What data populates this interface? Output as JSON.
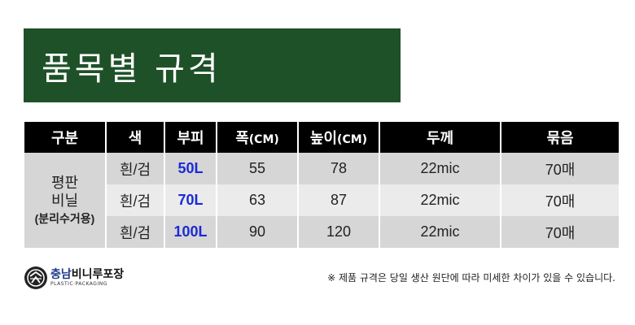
{
  "title": "품목별 규격",
  "table": {
    "headers": [
      {
        "label": "구분",
        "unit": ""
      },
      {
        "label": "색",
        "unit": ""
      },
      {
        "label": "부피",
        "unit": ""
      },
      {
        "label": "폭",
        "unit": "(CM)"
      },
      {
        "label": "높이",
        "unit": "(CM)"
      },
      {
        "label": "두께",
        "unit": ""
      },
      {
        "label": "묶음",
        "unit": ""
      }
    ],
    "category": {
      "line1": "평판",
      "line2": "비닐",
      "line3": "(분리수거용)"
    },
    "rows": [
      {
        "color": "흰/검",
        "volume": "50L",
        "width": "55",
        "height": "78",
        "thickness": "22mic",
        "bundle": "70매"
      },
      {
        "color": "흰/검",
        "volume": "70L",
        "width": "63",
        "height": "87",
        "thickness": "22mic",
        "bundle": "70매"
      },
      {
        "color": "흰/검",
        "volume": "100L",
        "width": "90",
        "height": "120",
        "thickness": "22mic",
        "bundle": "70매"
      }
    ]
  },
  "logo": {
    "name_part1": "충남",
    "name_part2": "비니루포장",
    "subtitle": "PLASTIC·PACKAGING"
  },
  "note": "※ 제품 규격은 당일 생산 원단에 따라 미세한 차이가 있을 수 있습니다.",
  "colors": {
    "banner": "#1e5128",
    "header_bg": "#000000",
    "volume_text": "#1a2bd4",
    "row_dark": "#d6d6d6",
    "row_light": "#ebebeb"
  }
}
